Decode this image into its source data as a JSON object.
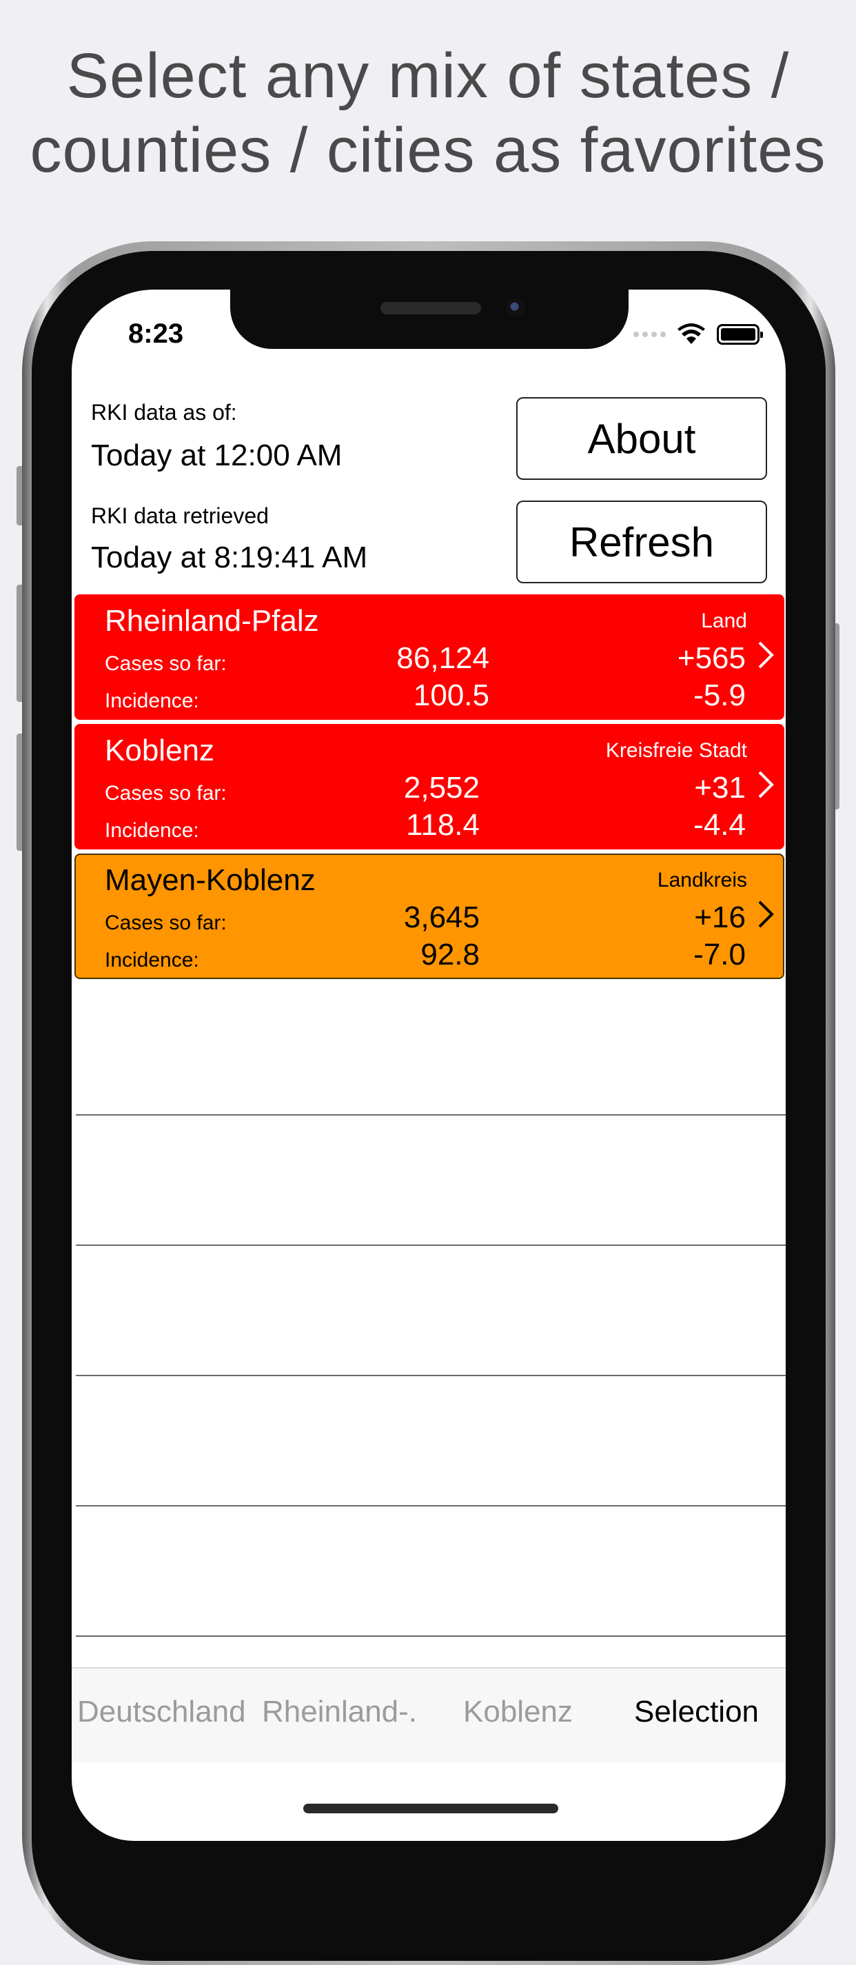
{
  "headline": {
    "line1": "Select any mix of states /",
    "line2": "counties / cities as favorites"
  },
  "status_bar": {
    "time": "8:23"
  },
  "header": {
    "data_as_of_label": "RKI data as of:",
    "data_as_of_value": "Today at 12:00 AM",
    "retrieved_label": "RKI data retrieved",
    "retrieved_value": "Today at 8:19:41 AM",
    "about_label": "About",
    "refresh_label": "Refresh"
  },
  "regions": [
    {
      "name": "Rheinland-Pfalz",
      "type": "Land",
      "cases_label": "Cases so far:",
      "cases": "86,124",
      "cases_delta": "+565",
      "incidence_label": "Incidence:",
      "incidence": "100.5",
      "incidence_delta": "-5.9",
      "color": "#ff0000"
    },
    {
      "name": "Koblenz",
      "type": "Kreisfreie Stadt",
      "cases_label": "Cases so far:",
      "cases": "2,552",
      "cases_delta": "+31",
      "incidence_label": "Incidence:",
      "incidence": "118.4",
      "incidence_delta": "-4.4",
      "color": "#ff0000"
    },
    {
      "name": "Mayen-Koblenz",
      "type": "Landkreis",
      "cases_label": "Cases so far:",
      "cases": "3,645",
      "cases_delta": "+16",
      "incidence_label": "Incidence:",
      "incidence": "92.8",
      "incidence_delta": "-7.0",
      "color": "#ff9500"
    }
  ],
  "tabs": [
    {
      "label": "Deutschland",
      "active": false
    },
    {
      "label": "Rheinland-.",
      "active": false
    },
    {
      "label": "Koblenz",
      "active": false
    },
    {
      "label": "Selection",
      "active": true
    }
  ]
}
